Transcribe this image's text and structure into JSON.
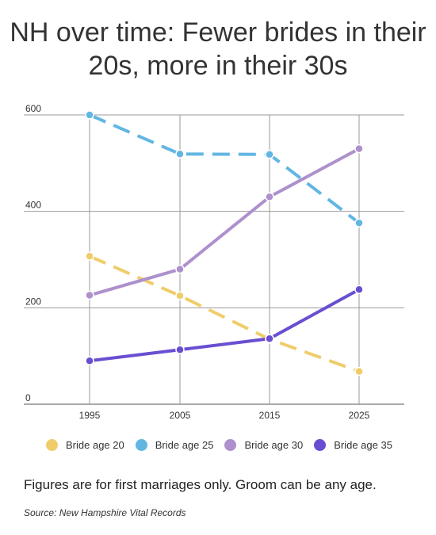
{
  "chart_data": {
    "type": "line",
    "title": "NH over time: Fewer brides in their 20s, more in their 30s",
    "x": [
      "1995",
      "2005",
      "2015",
      "2025"
    ],
    "ylim": [
      0,
      600
    ],
    "yticks": [
      "0",
      "200",
      "400",
      "600"
    ],
    "grid": true,
    "legend_position": "bottom",
    "series": [
      {
        "name": "Bride age 20",
        "color": "#f0cd6b",
        "dashed": true,
        "values": [
          307,
          225,
          135,
          68
        ]
      },
      {
        "name": "Bride age 25",
        "color": "#62b6e2",
        "dashed": true,
        "values": [
          600,
          519,
          518,
          376
        ]
      },
      {
        "name": "Bride age 30",
        "color": "#ad90cc",
        "dashed": false,
        "values": [
          226,
          280,
          430,
          530
        ]
      },
      {
        "name": "Bride age 35",
        "color": "#6a4ed2",
        "dashed": false,
        "values": [
          90,
          113,
          136,
          238
        ]
      }
    ]
  },
  "note": "Figures are for first marriages only. Groom can be any age.",
  "source": "Source: New Hampshire Vital Records"
}
